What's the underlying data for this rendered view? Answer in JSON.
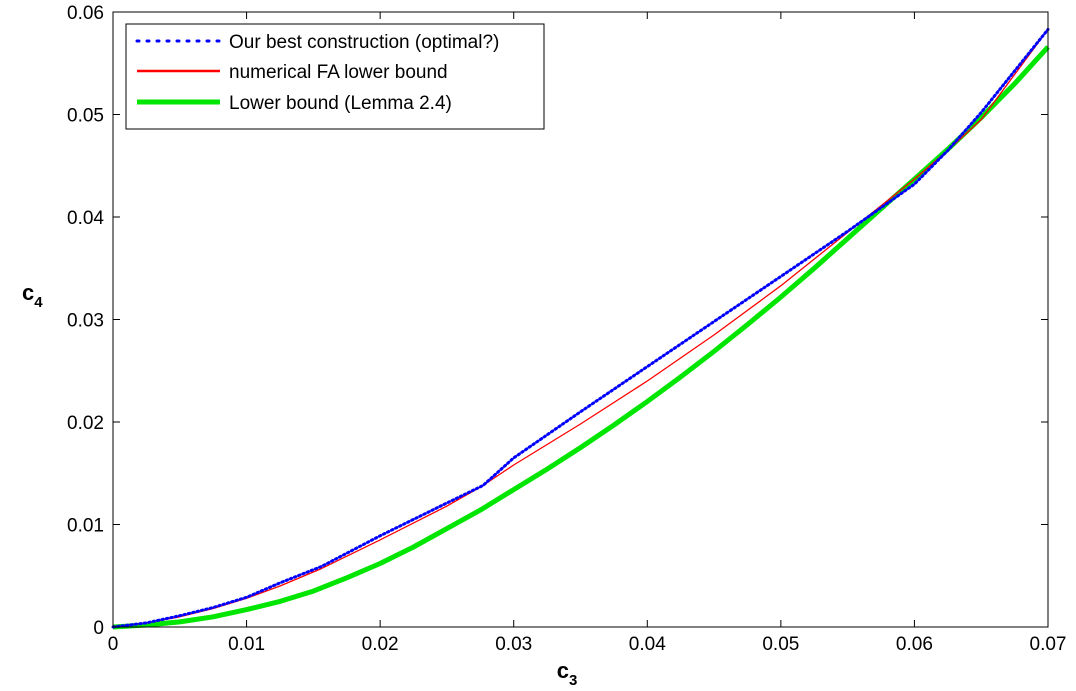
{
  "chart_data": {
    "type": "line",
    "title": "",
    "xlabel": "c",
    "xlabel_subscript": "3",
    "ylabel": "c",
    "ylabel_subscript": "4",
    "xlim": [
      0,
      0.07
    ],
    "ylim": [
      0,
      0.06
    ],
    "x_ticks": [
      0,
      0.01,
      0.02,
      0.03,
      0.04,
      0.05,
      0.06,
      0.07
    ],
    "x_tick_labels": [
      "0",
      "0.01",
      "0.02",
      "0.03",
      "0.04",
      "0.05",
      "0.06",
      "0.07"
    ],
    "y_ticks": [
      0,
      0.01,
      0.02,
      0.03,
      0.04,
      0.05,
      0.06
    ],
    "y_tick_labels": [
      "0",
      "0.01",
      "0.02",
      "0.03",
      "0.04",
      "0.05",
      "0.06"
    ],
    "grid": false,
    "legend_position": "top-left",
    "series": [
      {
        "name": "Our best construction (optimal?)",
        "color": "#0000ff",
        "style": "dotted",
        "x": [
          0,
          0.0025,
          0.005,
          0.0075,
          0.01,
          0.0125,
          0.0156,
          0.02,
          0.025,
          0.0277,
          0.03,
          0.035,
          0.04,
          0.045,
          0.05,
          0.055,
          0.06,
          0.0625,
          0.065,
          0.07
        ],
        "y": [
          0,
          0.0004,
          0.0011,
          0.0019,
          0.0029,
          0.0043,
          0.0059,
          0.0089,
          0.0121,
          0.0138,
          0.0165,
          0.021,
          0.0254,
          0.0298,
          0.0342,
          0.0386,
          0.0432,
          0.0465,
          0.0502,
          0.0583
        ]
      },
      {
        "name": "numerical FA lower bound",
        "color": "#ff0000",
        "style": "solid",
        "x": [
          0,
          0.0025,
          0.005,
          0.0075,
          0.01,
          0.0125,
          0.0156,
          0.02,
          0.025,
          0.0277,
          0.03,
          0.035,
          0.04,
          0.045,
          0.05,
          0.055,
          0.06,
          0.0625,
          0.065,
          0.07
        ],
        "y": [
          0,
          0.0004,
          0.001,
          0.0018,
          0.0028,
          0.004,
          0.0057,
          0.0085,
          0.0118,
          0.0138,
          0.0158,
          0.0198,
          0.024,
          0.0285,
          0.0333,
          0.0385,
          0.0437,
          0.0465,
          0.0495,
          0.0583
        ]
      },
      {
        "name": "Lower bound (Lemma 2.4)",
        "color": "#00e600",
        "style": "solid-thick",
        "x": [
          0,
          0.0025,
          0.005,
          0.0075,
          0.01,
          0.0125,
          0.015,
          0.0175,
          0.02,
          0.0225,
          0.025,
          0.0275,
          0.03,
          0.0325,
          0.035,
          0.0375,
          0.04,
          0.0425,
          0.045,
          0.0475,
          0.05,
          0.0525,
          0.055,
          0.0575,
          0.06,
          0.0625,
          0.065,
          0.0675,
          0.07
        ],
        "y": [
          0,
          0.0002,
          0.0005,
          0.001,
          0.0017,
          0.0025,
          0.0035,
          0.0048,
          0.0062,
          0.0078,
          0.0096,
          0.0114,
          0.0134,
          0.0154,
          0.0175,
          0.0197,
          0.022,
          0.0244,
          0.0269,
          0.0295,
          0.0322,
          0.035,
          0.0379,
          0.0408,
          0.0437,
          0.0466,
          0.0497,
          0.053,
          0.0566
        ]
      }
    ]
  }
}
